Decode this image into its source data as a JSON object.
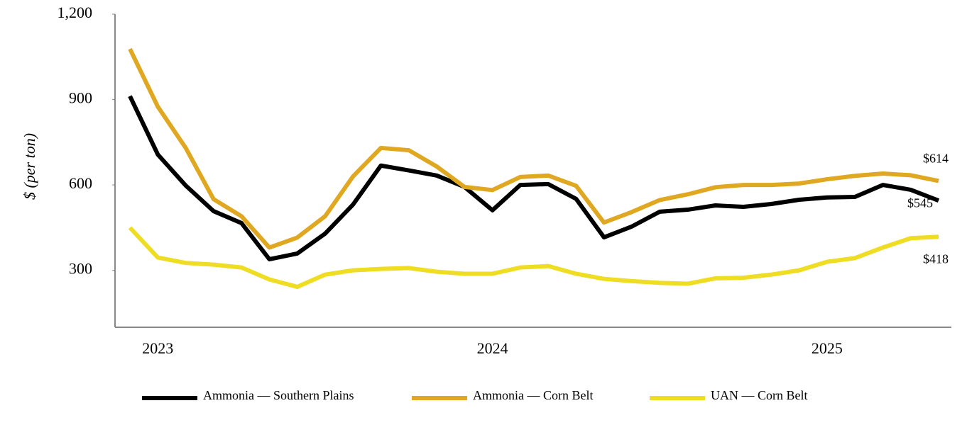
{
  "chart_data": {
    "type": "line",
    "y_label": "$ (per ton)",
    "categories": [
      null,
      "2023",
      null,
      null,
      null,
      null,
      null,
      null,
      null,
      null,
      null,
      null,
      null,
      "2024",
      null,
      null,
      null,
      null,
      null,
      null,
      null,
      null,
      null,
      null,
      null,
      "2025",
      null,
      null,
      null,
      null
    ],
    "series": [
      {
        "name": "Ammonia — Southern Plains",
        "color": "#000000",
        "values": [
          912,
          707,
          598,
          508,
          466,
          339,
          359,
          429,
          531,
          668,
          651,
          633,
          593,
          511,
          600,
          603,
          551,
          416,
          454,
          506,
          513,
          528,
          523,
          533,
          548,
          556,
          558,
          600,
          583,
          545
        ],
        "value_labels": [
          null,
          null,
          null,
          null,
          null,
          null,
          null,
          null,
          null,
          null,
          null,
          null,
          null,
          null,
          null,
          null,
          null,
          null,
          null,
          null,
          null,
          null,
          null,
          null,
          null,
          null,
          null,
          null,
          null,
          "$545"
        ]
      },
      {
        "name": "Ammonia — Corn Belt",
        "color": "#e0a820",
        "values": [
          1078,
          875,
          730,
          550,
          490,
          380,
          415,
          490,
          630,
          730,
          722,
          665,
          593,
          582,
          628,
          633,
          597,
          468,
          505,
          547,
          567,
          592,
          600,
          600,
          605,
          620,
          632,
          640,
          634,
          614
        ],
        "value_labels": [
          null,
          null,
          null,
          null,
          null,
          null,
          null,
          null,
          null,
          null,
          null,
          null,
          null,
          null,
          null,
          null,
          null,
          null,
          null,
          null,
          null,
          null,
          null,
          null,
          null,
          null,
          null,
          null,
          null,
          "$614"
        ]
      },
      {
        "name": "UAN — Corn Belt",
        "color": "#eedd22",
        "values": [
          450,
          345,
          326,
          320,
          310,
          268,
          242,
          285,
          300,
          305,
          308,
          295,
          288,
          288,
          310,
          315,
          288,
          270,
          262,
          256,
          253,
          272,
          274,
          285,
          300,
          330,
          343,
          380,
          413,
          418
        ],
        "value_labels": [
          null,
          null,
          null,
          null,
          null,
          null,
          null,
          null,
          null,
          null,
          null,
          null,
          null,
          null,
          null,
          null,
          null,
          null,
          null,
          null,
          null,
          null,
          null,
          null,
          null,
          null,
          null,
          null,
          null,
          "$418"
        ]
      }
    ],
    "ylim": [
      100,
      1200
    ],
    "yticks": [
      300,
      600,
      900,
      {
        "value": 1200,
        "label": "1,200"
      }
    ],
    "grid": false,
    "legend": "bottom"
  }
}
